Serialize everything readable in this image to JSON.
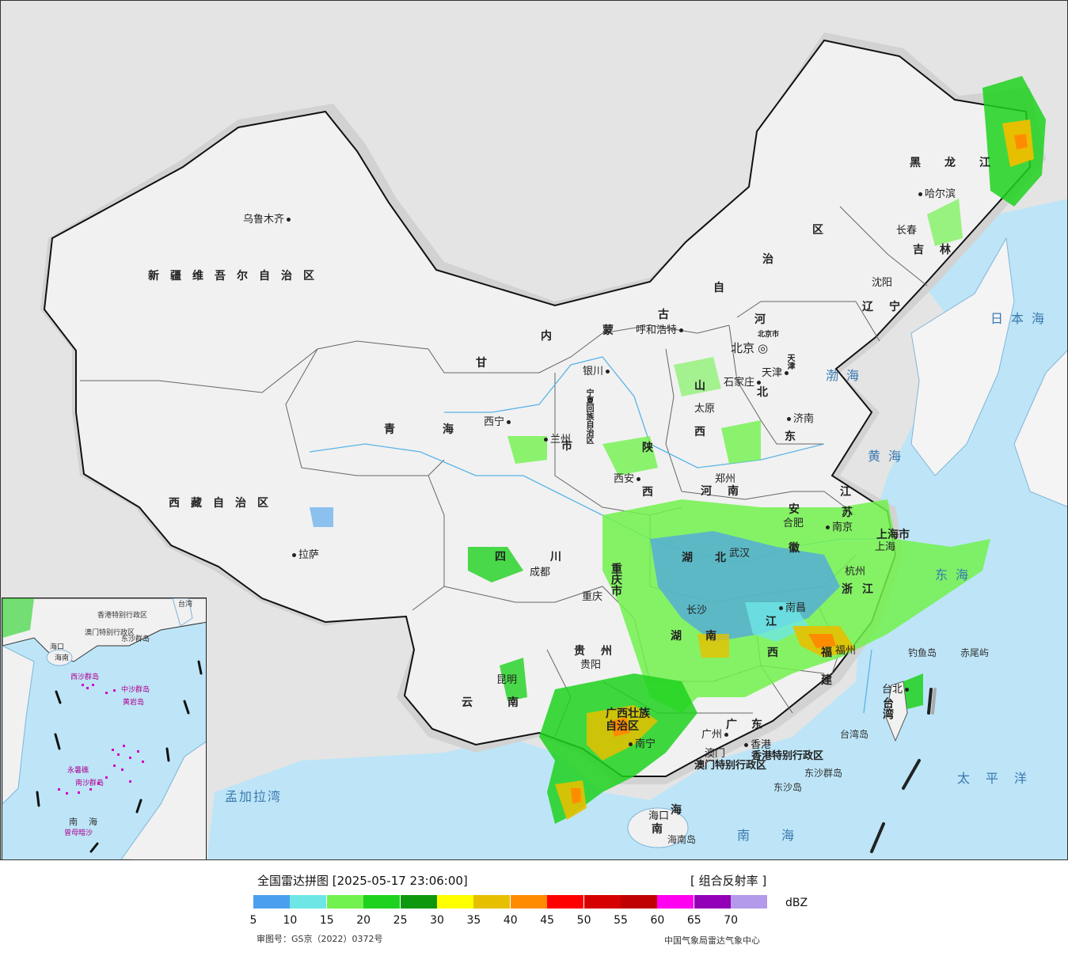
{
  "map": {
    "cities": [
      {
        "name": "乌鲁木齐",
        "side": "left"
      },
      {
        "name": "拉萨",
        "side": "right"
      },
      {
        "name": "西宁",
        "side": "left"
      },
      {
        "name": "兰州",
        "side": "right"
      },
      {
        "name": "银川",
        "side": "left"
      },
      {
        "name": "呼和浩特",
        "side": "left"
      },
      {
        "name": "北京",
        "side": "left"
      },
      {
        "name": "天津",
        "side": "left"
      },
      {
        "name": "石家庄",
        "side": "left"
      },
      {
        "name": "太原",
        "side": "left"
      },
      {
        "name": "济南",
        "side": "right"
      },
      {
        "name": "郑州",
        "side": "left"
      },
      {
        "name": "西安",
        "side": "left"
      },
      {
        "name": "成都",
        "side": "left"
      },
      {
        "name": "重庆",
        "side": "right"
      },
      {
        "name": "贵阳",
        "side": "left"
      },
      {
        "name": "昆明",
        "side": "left"
      },
      {
        "name": "南宁",
        "side": "right"
      },
      {
        "name": "广州",
        "side": "left"
      },
      {
        "name": "香港",
        "side": "right"
      },
      {
        "name": "澳门",
        "side": "left"
      },
      {
        "name": "海口",
        "side": "left"
      },
      {
        "name": "长沙",
        "side": "left"
      },
      {
        "name": "武汉",
        "side": "right"
      },
      {
        "name": "南昌",
        "side": "right"
      },
      {
        "name": "福州",
        "side": "right"
      },
      {
        "name": "杭州",
        "side": "left"
      },
      {
        "name": "上海",
        "side": "left"
      },
      {
        "name": "南京",
        "side": "right"
      },
      {
        "name": "合肥",
        "side": "left"
      },
      {
        "name": "沈阳",
        "side": "left"
      },
      {
        "name": "长春",
        "side": "left"
      },
      {
        "name": "哈尔滨",
        "side": "right"
      },
      {
        "name": "台北",
        "side": "left"
      }
    ],
    "provinces": [
      "新疆维吾尔自治区",
      "西藏自治区",
      "青海",
      "甘",
      "内",
      "蒙",
      "古",
      "自",
      "治",
      "区",
      "黑龙江",
      "吉林",
      "辽宁",
      "河",
      "北",
      "山",
      "西",
      "东",
      "陕",
      "河南",
      "江",
      "苏",
      "安",
      "徽",
      "湖",
      "北",
      "四",
      "川",
      "重庆市",
      "贵州",
      "云",
      "南",
      "湖",
      "南",
      "江",
      "西",
      "浙",
      "江",
      "上海市",
      "福",
      "建",
      "广东",
      "广西壮族自治区",
      "海",
      "南",
      "台湾",
      "天津",
      "宁夏回族自治区",
      "西",
      "陕",
      "北京市"
    ],
    "seas": [
      "渤海",
      "黄海",
      "东海",
      "日本海",
      "太平洋",
      "南海",
      "孟加拉湾"
    ],
    "islands": [
      "钓鱼岛",
      "赤尾屿",
      "台湾岛",
      "东沙群岛",
      "东沙岛",
      "海南岛"
    ],
    "sar": [
      "香港特别行政区",
      "澳门特别行政区"
    ],
    "inset_labels": [
      "南海",
      "海口",
      "西沙群岛",
      "中沙群岛",
      "黄岩岛",
      "永暑礁",
      "南沙群岛",
      "曾母暗沙",
      "东沙群岛",
      "台湾",
      "香港特别行政区",
      "澳门特别行政区",
      "海南"
    ]
  },
  "legend": {
    "title": "全国雷达拼图 [2025-05-17 23:06:00]",
    "product": "[ 组合反射率 ]",
    "unit": "dBZ",
    "colors": [
      "#4aa0ee",
      "#6ee6e6",
      "#72f24e",
      "#1fd21f",
      "#0e980e",
      "#ffff00",
      "#e6c000",
      "#ff8c00",
      "#ff0000",
      "#d60000",
      "#c00000",
      "#ff00f0",
      "#9300b8",
      "#b39aea"
    ],
    "ticks": [
      "5",
      "10",
      "15",
      "20",
      "25",
      "30",
      "35",
      "40",
      "45",
      "50",
      "55",
      "60",
      "65",
      "70"
    ],
    "approval": "审图号：GS京（2022）0372号",
    "source": "中国气象局雷达气象中心"
  }
}
